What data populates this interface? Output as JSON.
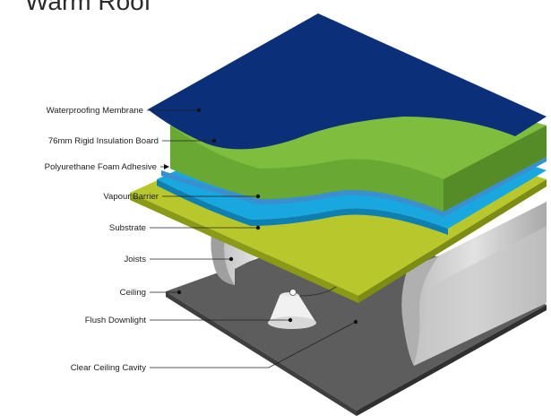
{
  "title": "Warm Roof",
  "labels": [
    {
      "id": "waterproofing-membrane",
      "text": "Waterproofing Membrane"
    },
    {
      "id": "rigid-insulation-board",
      "text": "76mm Rigid Insulation Board"
    },
    {
      "id": "foam-adhesive",
      "text": "Polyurethane Foam Adhesive"
    },
    {
      "id": "vapour-barrier",
      "text": "Vapour Barrier"
    },
    {
      "id": "substrate",
      "text": "Substrate"
    },
    {
      "id": "joists",
      "text": "Joists"
    },
    {
      "id": "ceiling",
      "text": "Ceiling"
    },
    {
      "id": "flush-downlight",
      "text": "Flush Downlight"
    },
    {
      "id": "clear-ceiling-cavity",
      "text": "Clear Ceiling Cavity"
    }
  ],
  "colors": {
    "membrane": "#0b2f78",
    "insulation_top": "#7fbd3f",
    "insulation_side": "#5f9a2c",
    "adhesive": "#3a8fd0",
    "vapour": "#19a7e0",
    "substrate": "#b7c92a",
    "joist": "#c9c9c9",
    "ceiling": "#5c5c5c"
  }
}
